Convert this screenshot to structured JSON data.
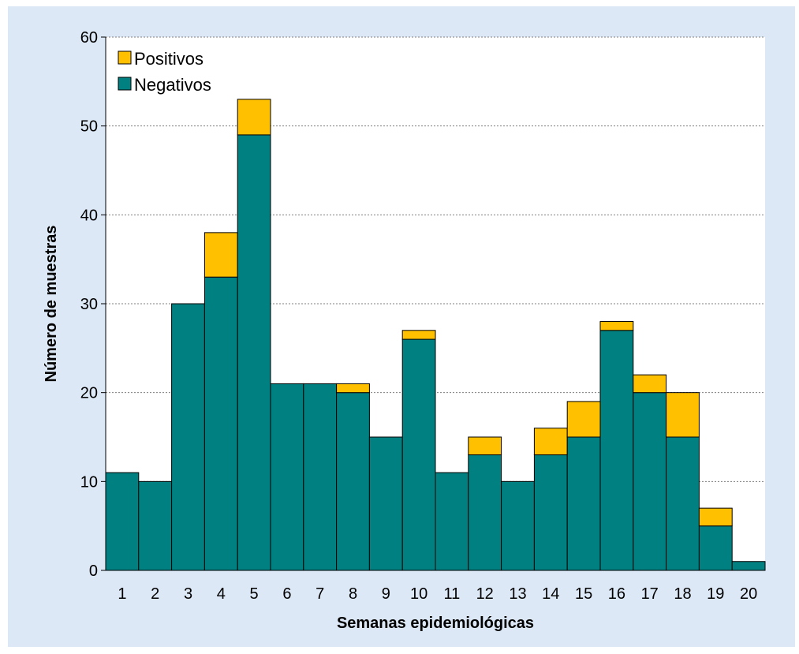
{
  "chart_data": {
    "type": "bar",
    "stacked": true,
    "title": "",
    "xlabel": "Semanas epidemiológicas",
    "ylabel": "Número de muestras",
    "ylim": [
      0,
      60
    ],
    "yticks": [
      0,
      10,
      20,
      30,
      40,
      50,
      60
    ],
    "grid": "horizontal dotted",
    "legend": "top-left",
    "categories": [
      "1",
      "2",
      "3",
      "4",
      "5",
      "6",
      "7",
      "8",
      "9",
      "10",
      "11",
      "12",
      "13",
      "14",
      "15",
      "16",
      "17",
      "18",
      "19",
      "20"
    ],
    "series": [
      {
        "name": "Negativos",
        "color": "#008080",
        "values": [
          11,
          10,
          30,
          33,
          49,
          21,
          21,
          20,
          15,
          26,
          11,
          13,
          10,
          13,
          15,
          27,
          20,
          15,
          5,
          1
        ]
      },
      {
        "name": "Positivos",
        "color": "#ffc000",
        "values": [
          0,
          0,
          0,
          5,
          4,
          0,
          0,
          1,
          0,
          1,
          0,
          2,
          0,
          3,
          4,
          1,
          2,
          5,
          2,
          0
        ]
      }
    ],
    "legend_order": [
      "Positivos",
      "Negativos"
    ]
  }
}
